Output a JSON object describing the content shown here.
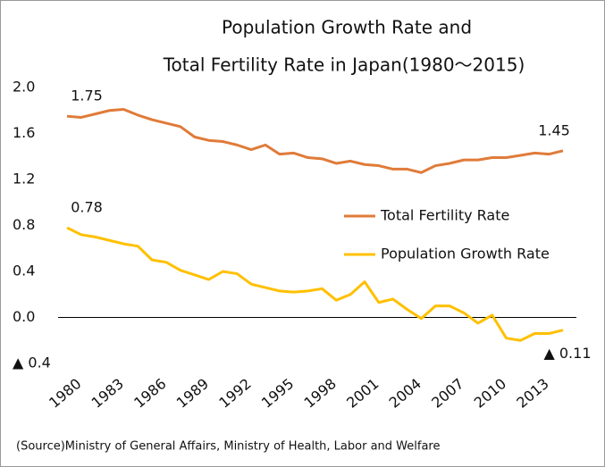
{
  "chart_data": {
    "type": "line",
    "title": [
      "Population Growth Rate and",
      "Total Fertility Rate in Japan(1980～2015)"
    ],
    "source": "(Source)Ministry of General Affairs, Ministry of Health, Labor and Welfare",
    "x": [
      1980,
      1981,
      1982,
      1983,
      1984,
      1985,
      1986,
      1987,
      1988,
      1989,
      1990,
      1991,
      1992,
      1993,
      1994,
      1995,
      1996,
      1997,
      1998,
      1999,
      2000,
      2001,
      2002,
      2003,
      2004,
      2005,
      2006,
      2007,
      2008,
      2009,
      2010,
      2011,
      2012,
      2013,
      2014,
      2015
    ],
    "series": [
      {
        "name": "Total Fertility Rate",
        "color": "#e07b39",
        "values": [
          1.75,
          1.74,
          1.77,
          1.8,
          1.81,
          1.76,
          1.72,
          1.69,
          1.66,
          1.57,
          1.54,
          1.53,
          1.5,
          1.46,
          1.5,
          1.42,
          1.43,
          1.39,
          1.38,
          1.34,
          1.36,
          1.33,
          1.32,
          1.29,
          1.29,
          1.26,
          1.32,
          1.34,
          1.37,
          1.37,
          1.39,
          1.39,
          1.41,
          1.43,
          1.42,
          1.45
        ],
        "value_labels": [
          "1.75",
          null,
          null,
          null,
          null,
          null,
          null,
          null,
          null,
          null,
          null,
          null,
          null,
          null,
          null,
          null,
          null,
          null,
          null,
          null,
          null,
          null,
          null,
          null,
          null,
          null,
          null,
          null,
          null,
          null,
          null,
          null,
          null,
          null,
          null,
          "1.45"
        ]
      },
      {
        "name": "Population Growth Rate",
        "color": "#ffc000",
        "values": [
          0.78,
          0.72,
          0.7,
          0.67,
          0.64,
          0.62,
          0.5,
          0.48,
          0.41,
          0.37,
          0.33,
          0.4,
          0.38,
          0.29,
          0.26,
          0.23,
          0.22,
          0.23,
          0.25,
          0.15,
          0.2,
          0.31,
          0.13,
          0.16,
          0.07,
          -0.01,
          0.1,
          0.1,
          0.04,
          -0.05,
          0.02,
          -0.18,
          -0.2,
          -0.14,
          -0.14,
          -0.11
        ],
        "value_labels": [
          "0.78",
          null,
          null,
          null,
          null,
          null,
          null,
          null,
          null,
          null,
          null,
          null,
          null,
          null,
          null,
          null,
          null,
          null,
          null,
          null,
          null,
          null,
          null,
          null,
          null,
          null,
          null,
          null,
          null,
          null,
          null,
          null,
          null,
          null,
          null,
          "▲ 0.11"
        ]
      }
    ],
    "xlim": [
      1980,
      2015
    ],
    "xticks": [
      1980,
      1983,
      1986,
      1989,
      1992,
      1995,
      1998,
      2001,
      2004,
      2007,
      2010,
      2013
    ],
    "ylim": [
      -0.4,
      2.0
    ],
    "yticks": [
      {
        "value": 2.0,
        "label": "2.0"
      },
      {
        "value": 1.6,
        "label": "1.6"
      },
      {
        "value": 1.2,
        "label": "1.2"
      },
      {
        "value": 0.8,
        "label": "0.8"
      },
      {
        "value": 0.4,
        "label": "0.4"
      },
      {
        "value": 0.0,
        "label": "0.0"
      },
      {
        "value": -0.4,
        "label": "▲ 0.4"
      }
    ],
    "grid": false,
    "legend": "right"
  }
}
